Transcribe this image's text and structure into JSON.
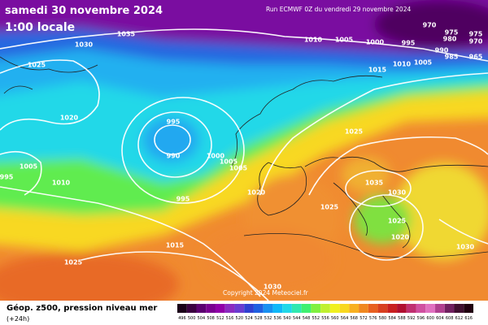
{
  "header": {
    "title": "samedi 30 novembre 2024",
    "time": "1:00 locale",
    "run": "Run ECMWF 0Z du vendredi 29 novembre 2024"
  },
  "isobar_labels": [
    1035,
    1030,
    1025,
    1020,
    1005,
    1010,
    995,
    995,
    990,
    1000,
    1005,
    1005,
    995,
    1020,
    1015,
    1025,
    1030,
    1025,
    1035,
    1030,
    1025,
    1025,
    1020,
    1030,
    1010,
    1005,
    1000,
    995,
    1015,
    1010,
    1005,
    990,
    985,
    980,
    975,
    970,
    975,
    970,
    965
  ],
  "copyright": "Copyright 2024 Meteociel.fr",
  "legend": {
    "title": "Géop. z500, pression niveau mer",
    "lead": "(+24h)",
    "values": [
      496,
      500,
      504,
      508,
      512,
      516,
      520,
      524,
      528,
      532,
      536,
      540,
      544,
      548,
      552,
      556,
      560,
      564,
      568,
      572,
      576,
      580,
      584,
      588,
      592,
      596,
      600,
      604,
      608,
      612,
      616
    ],
    "colors": [
      "#1a0018",
      "#3b0040",
      "#5c0070",
      "#7a0090",
      "#9000a8",
      "#8a2bc0",
      "#6a3cd0",
      "#3040d0",
      "#2060e0",
      "#1890f0",
      "#10b8f8",
      "#20d8e8",
      "#30e8b0",
      "#40f070",
      "#80f040",
      "#c0f030",
      "#f0f020",
      "#f8d820",
      "#f8b020",
      "#f08820",
      "#e86020",
      "#d84020",
      "#c82020",
      "#b01030",
      "#c03070",
      "#d050a0",
      "#e070c0",
      "#b04090",
      "#702060",
      "#401030",
      "#200010"
    ]
  }
}
